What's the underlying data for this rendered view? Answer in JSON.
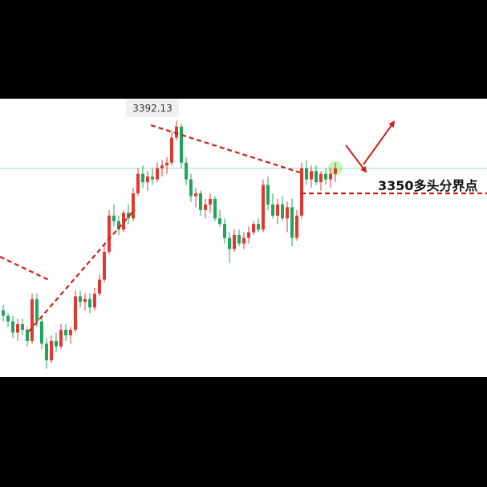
{
  "chart_data": {
    "type": "candlestick",
    "title": "",
    "colors": {
      "up": "#e0392f",
      "down": "#1fa65a",
      "annotation": "#d0201a",
      "current_price_line": "#9fe0c9",
      "highlight": "#8cf07a"
    },
    "price_range": [
      3300,
      3400
    ],
    "current_price": 3375,
    "high_label": "3392.13",
    "high_value": 3392.13,
    "support": {
      "value": 3350,
      "label": "3350多头分界点"
    },
    "candles": [
      [
        3324,
        3326,
        3320,
        3322
      ],
      [
        3322,
        3323,
        3318,
        3320
      ],
      [
        3320,
        3322,
        3314,
        3316
      ],
      [
        3316,
        3321,
        3313,
        3319
      ],
      [
        3319,
        3321,
        3315,
        3317
      ],
      [
        3317,
        3318,
        3311,
        3313
      ],
      [
        3313,
        3330,
        3312,
        3328
      ],
      [
        3328,
        3330,
        3318,
        3320
      ],
      [
        3320,
        3322,
        3310,
        3312
      ],
      [
        3312,
        3314,
        3303,
        3306
      ],
      [
        3306,
        3315,
        3305,
        3313
      ],
      [
        3313,
        3316,
        3309,
        3311
      ],
      [
        3311,
        3319,
        3310,
        3317
      ],
      [
        3317,
        3319,
        3313,
        3315
      ],
      [
        3315,
        3318,
        3312,
        3317
      ],
      [
        3317,
        3331,
        3316,
        3329
      ],
      [
        3329,
        3331,
        3325,
        3327
      ],
      [
        3327,
        3330,
        3324,
        3328
      ],
      [
        3328,
        3330,
        3323,
        3325
      ],
      [
        3325,
        3332,
        3324,
        3330
      ],
      [
        3330,
        3337,
        3329,
        3335
      ],
      [
        3335,
        3347,
        3334,
        3345
      ],
      [
        3345,
        3360,
        3344,
        3358
      ],
      [
        3358,
        3362,
        3354,
        3356
      ],
      [
        3356,
        3358,
        3351,
        3353
      ],
      [
        3353,
        3360,
        3352,
        3359
      ],
      [
        3359,
        3362,
        3355,
        3357
      ],
      [
        3357,
        3368,
        3356,
        3366
      ],
      [
        3366,
        3375,
        3365,
        3373
      ],
      [
        3373,
        3376,
        3368,
        3370
      ],
      [
        3370,
        3374,
        3367,
        3372
      ],
      [
        3372,
        3375,
        3369,
        3371
      ],
      [
        3371,
        3377,
        3370,
        3375
      ],
      [
        3375,
        3378,
        3372,
        3376
      ],
      [
        3376,
        3379,
        3373,
        3377
      ],
      [
        3377,
        3388,
        3376,
        3386
      ],
      [
        3386,
        3392.13,
        3385,
        3390
      ],
      [
        3390,
        3391,
        3375,
        3377
      ],
      [
        3377,
        3379,
        3369,
        3371
      ],
      [
        3371,
        3373,
        3363,
        3365
      ],
      [
        3365,
        3368,
        3361,
        3366
      ],
      [
        3366,
        3367,
        3358,
        3360
      ],
      [
        3360,
        3364,
        3357,
        3362
      ],
      [
        3362,
        3366,
        3359,
        3364
      ],
      [
        3364,
        3365,
        3356,
        3357
      ],
      [
        3357,
        3360,
        3354,
        3355
      ],
      [
        3355,
        3357,
        3348,
        3350
      ],
      [
        3350,
        3352,
        3341,
        3346
      ],
      [
        3346,
        3353,
        3345,
        3351
      ],
      [
        3351,
        3353,
        3347,
        3348
      ],
      [
        3348,
        3352,
        3346,
        3350
      ],
      [
        3350,
        3354,
        3348,
        3352
      ],
      [
        3352,
        3356,
        3351,
        3355
      ],
      [
        3355,
        3357,
        3352,
        3353
      ],
      [
        3353,
        3371,
        3352,
        3369
      ],
      [
        3369,
        3372,
        3360,
        3362
      ],
      [
        3362,
        3366,
        3357,
        3358
      ],
      [
        3358,
        3364,
        3355,
        3362
      ],
      [
        3362,
        3365,
        3356,
        3357
      ],
      [
        3357,
        3363,
        3352,
        3361
      ],
      [
        3361,
        3364,
        3347,
        3350
      ],
      [
        3350,
        3360,
        3349,
        3358
      ],
      [
        3358,
        3377,
        3357,
        3375
      ],
      [
        3375,
        3378,
        3369,
        3371
      ],
      [
        3371,
        3376,
        3368,
        3374
      ],
      [
        3374,
        3376,
        3369,
        3370
      ],
      [
        3370,
        3374,
        3367,
        3373
      ],
      [
        3373,
        3375,
        3369,
        3371
      ],
      [
        3371,
        3375,
        3368,
        3373
      ],
      [
        3373,
        3377,
        3370,
        3375
      ]
    ]
  }
}
